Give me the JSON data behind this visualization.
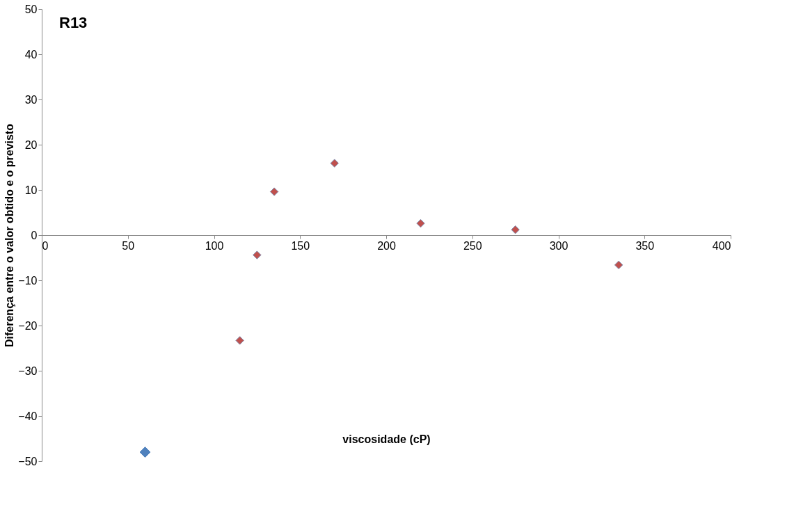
{
  "chart_data": {
    "type": "scatter",
    "xlabel": "viscosidade (cP)",
    "ylabel": "Diferença entre o valor obtido e o previsto",
    "annotations": [
      "R13"
    ],
    "xlim": [
      0,
      400
    ],
    "xticks": [
      0,
      50,
      100,
      150,
      200,
      250,
      300,
      350,
      400
    ],
    "ylim": [
      -50,
      50
    ],
    "yticks": [
      -50,
      -40,
      -30,
      -20,
      -10,
      0,
      10,
      20,
      30,
      40,
      50
    ],
    "grid": false,
    "legend": false,
    "marker": "diamond",
    "series": [
      {
        "color": "#4f81bd",
        "x": [
          60
        ],
        "values": [
          -48
        ]
      },
      {
        "color": "#c0504d",
        "x": [
          115,
          125,
          135,
          170,
          220,
          275,
          335
        ],
        "values": [
          -23.3,
          -4.4,
          9.6,
          15.9,
          2.6,
          1.2,
          -6.6
        ]
      }
    ]
  }
}
